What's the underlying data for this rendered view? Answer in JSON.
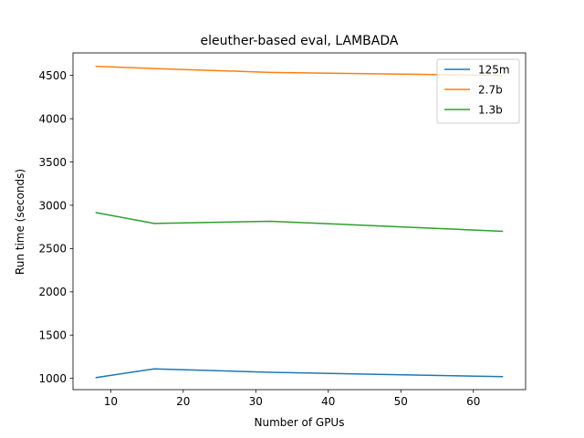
{
  "chart_data": {
    "type": "line",
    "title": "eleuther-based eval, LAMBADA",
    "xlabel": "Number of GPUs",
    "ylabel": "Run time (seconds)",
    "xlim": [
      4.8,
      67.2
    ],
    "ylim": [
      870,
      4760
    ],
    "xticks": [
      10,
      20,
      30,
      40,
      50,
      60
    ],
    "yticks": [
      1000,
      1500,
      2000,
      2500,
      3000,
      3500,
      4000,
      4500
    ],
    "legend_position": "top-right",
    "x": [
      8,
      16,
      32,
      64
    ],
    "series": [
      {
        "name": "125m",
        "color": "#1f77b4",
        "values": [
          1010,
          1110,
          1070,
          1020
        ]
      },
      {
        "name": "2.7b",
        "color": "#ff7f0e",
        "values": [
          4605,
          4580,
          4535,
          4500
        ]
      },
      {
        "name": "1.3b",
        "color": "#2ca02c",
        "values": [
          2915,
          2790,
          2815,
          2700
        ]
      }
    ]
  }
}
